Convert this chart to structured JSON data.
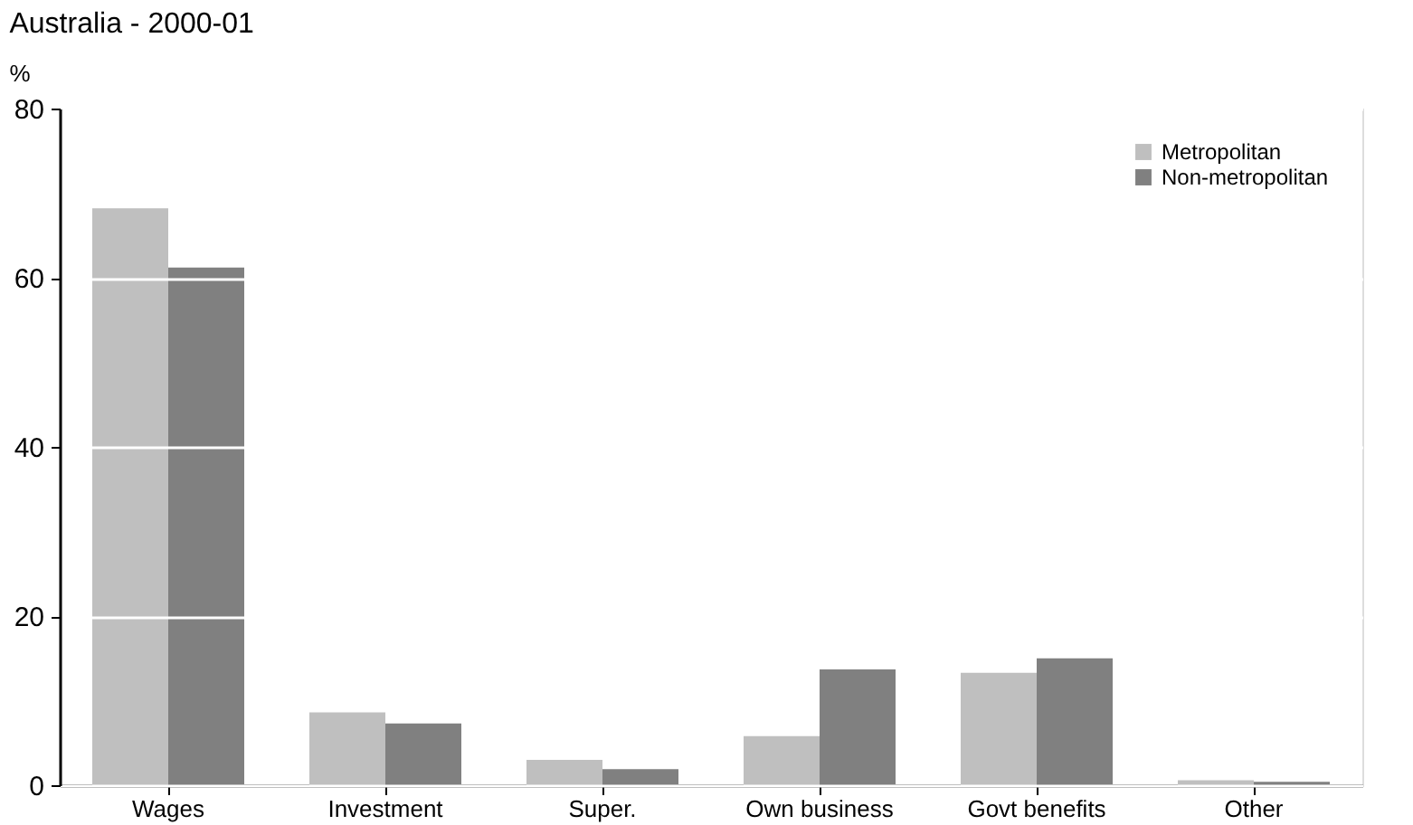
{
  "chart_data": {
    "type": "bar",
    "title": "Australia - 2000-01",
    "ylabel": "%",
    "categories": [
      "Wages",
      "Investment",
      "Super.",
      "Own business",
      "Govt benefits",
      "Other"
    ],
    "series": [
      {
        "name": "Metropolitan",
        "color": "#bfbfbf",
        "values": [
          68.2,
          8.6,
          3.0,
          5.8,
          13.3,
          0.6
        ]
      },
      {
        "name": "Non-metropolitan",
        "color": "#808080",
        "values": [
          61.2,
          7.3,
          1.9,
          13.7,
          15.0,
          0.4
        ]
      }
    ],
    "ylim": [
      0,
      80
    ],
    "yticks": [
      0,
      20,
      40,
      60,
      80
    ],
    "grid": "y",
    "legend": "top right"
  }
}
